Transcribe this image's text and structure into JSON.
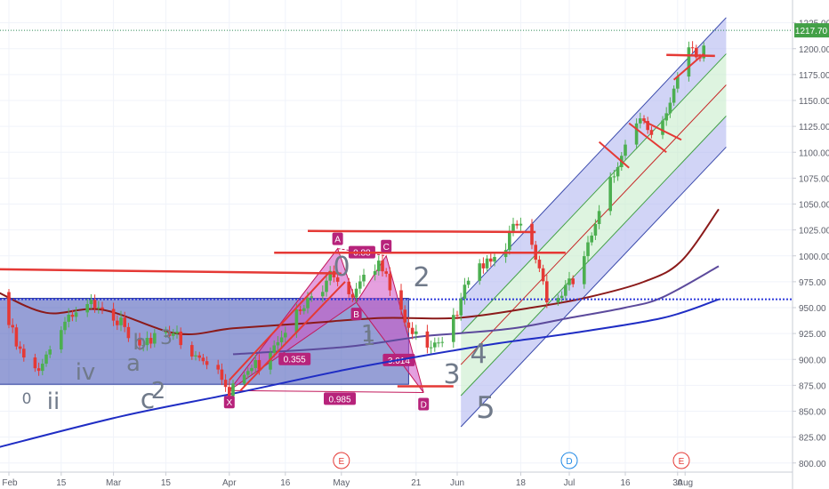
{
  "chart_data": {
    "type": "candlestick",
    "title": "",
    "xlabel": "",
    "ylabel": "",
    "y_axis_position": "right",
    "ylim": [
      795,
      1230
    ],
    "x_range_days": [
      -3,
      192
    ],
    "last_price": 1217.7,
    "last_price_label": "1217.70",
    "up_color": "#4caf50",
    "down_color": "#e53935",
    "x_ticks": [
      {
        "label": "Feb",
        "day": 0
      },
      {
        "label": "15",
        "day": 14
      },
      {
        "label": "Mar",
        "day": 28
      },
      {
        "label": "15",
        "day": 42
      },
      {
        "label": "Apr",
        "day": 59
      },
      {
        "label": "16",
        "day": 74
      },
      {
        "label": "May",
        "day": 89
      },
      {
        "label": "21",
        "day": 109
      },
      {
        "label": "Jun",
        "day": 120
      },
      {
        "label": "18",
        "day": 137
      },
      {
        "label": "Jul",
        "day": 150
      },
      {
        "label": "16",
        "day": 165
      },
      {
        "label": "30",
        "day": 179
      },
      {
        "label": "Aug",
        "day": 181
      }
    ],
    "y_ticks": [
      "800.00",
      "825.00",
      "850.00",
      "875.00",
      "900.00",
      "925.00",
      "950.00",
      "975.00",
      "1000.00",
      "1025.00",
      "1050.00",
      "1075.00",
      "1100.00",
      "1125.00",
      "1150.00",
      "1175.00",
      "1200.00",
      "1225.00"
    ],
    "price_path_anchors": [
      {
        "day": -3,
        "close": 965
      },
      {
        "day": 2,
        "close": 912
      },
      {
        "day": 6,
        "close": 885
      },
      {
        "day": 10,
        "close": 905
      },
      {
        "day": 14,
        "close": 930
      },
      {
        "day": 19,
        "close": 942
      },
      {
        "day": 24,
        "close": 958
      },
      {
        "day": 28,
        "close": 945
      },
      {
        "day": 32,
        "close": 918
      },
      {
        "day": 36,
        "close": 905
      },
      {
        "day": 40,
        "close": 935
      },
      {
        "day": 44,
        "close": 928
      },
      {
        "day": 47,
        "close": 903
      },
      {
        "day": 52,
        "close": 900
      },
      {
        "day": 56,
        "close": 895
      },
      {
        "day": 59,
        "close": 872
      },
      {
        "day": 63,
        "close": 885
      },
      {
        "day": 68,
        "close": 900
      },
      {
        "day": 73,
        "close": 930
      },
      {
        "day": 78,
        "close": 945
      },
      {
        "day": 83,
        "close": 965
      },
      {
        "day": 86,
        "close": 990
      },
      {
        "day": 89,
        "close": 975
      },
      {
        "day": 92,
        "close": 955
      },
      {
        "day": 95,
        "close": 975
      },
      {
        "day": 99,
        "close": 1000
      },
      {
        "day": 102,
        "close": 975
      },
      {
        "day": 105,
        "close": 940
      },
      {
        "day": 108,
        "close": 918
      },
      {
        "day": 112,
        "close": 920
      },
      {
        "day": 117,
        "close": 922
      },
      {
        "day": 120,
        "close": 940
      },
      {
        "day": 123,
        "close": 975
      },
      {
        "day": 127,
        "close": 995
      },
      {
        "day": 132,
        "close": 1010
      },
      {
        "day": 136,
        "close": 1028
      },
      {
        "day": 139,
        "close": 1015
      },
      {
        "day": 142,
        "close": 990
      },
      {
        "day": 145,
        "close": 950
      },
      {
        "day": 148,
        "close": 965
      },
      {
        "day": 152,
        "close": 975
      },
      {
        "day": 155,
        "close": 1005
      },
      {
        "day": 158,
        "close": 1050
      },
      {
        "day": 161,
        "close": 1080
      },
      {
        "day": 164,
        "close": 1095
      },
      {
        "day": 167,
        "close": 1120
      },
      {
        "day": 170,
        "close": 1130
      },
      {
        "day": 173,
        "close": 1112
      },
      {
        "day": 176,
        "close": 1145
      },
      {
        "day": 179,
        "close": 1170
      },
      {
        "day": 182,
        "close": 1195
      },
      {
        "day": 185,
        "close": 1190
      },
      {
        "day": 187,
        "close": 1217.7
      }
    ],
    "moving_averages": [
      {
        "color": "#8b1a1a",
        "points": [
          [
            -3,
            965
          ],
          [
            10,
            945
          ],
          [
            25,
            948
          ],
          [
            45,
            925
          ],
          [
            60,
            930
          ],
          [
            80,
            935
          ],
          [
            100,
            940
          ],
          [
            120,
            940
          ],
          [
            140,
            950
          ],
          [
            155,
            960
          ],
          [
            170,
            975
          ],
          [
            180,
            995
          ],
          [
            190,
            1045
          ]
        ]
      },
      {
        "color": "#5c4a9c",
        "points": [
          [
            60,
            905
          ],
          [
            90,
            912
          ],
          [
            110,
            922
          ],
          [
            120,
            925
          ],
          [
            135,
            930
          ],
          [
            150,
            940
          ],
          [
            165,
            950
          ],
          [
            175,
            960
          ],
          [
            190,
            990
          ]
        ]
      },
      {
        "color": "#1f2dc4",
        "points": [
          [
            -3,
            815
          ],
          [
            30,
            845
          ],
          [
            60,
            867
          ],
          [
            90,
            890
          ],
          [
            110,
            903
          ],
          [
            130,
            915
          ],
          [
            150,
            925
          ],
          [
            175,
            940
          ],
          [
            190,
            958
          ]
        ]
      }
    ],
    "horizontal_levels": [
      {
        "color": "#2e3adb",
        "style": "dotted",
        "value": 958
      },
      {
        "color": "#2e8b57",
        "style": "dotted",
        "value": 1217.7
      }
    ],
    "red_segments": [
      {
        "from": [
          -3,
          987
        ],
        "to": [
          89,
          983
        ]
      },
      {
        "from": [
          71,
          1003
        ],
        "to": [
          149,
          1003
        ]
      },
      {
        "from": [
          80,
          1024
        ],
        "to": [
          141,
          1023
        ]
      },
      {
        "from": [
          104,
          874
        ],
        "to": [
          119,
          874
        ]
      },
      {
        "from": [
          176,
          1194
        ],
        "to": [
          189,
          1193
        ]
      }
    ],
    "blue_box": {
      "day_from": -3,
      "day_to": 107,
      "price_low": 876,
      "price_high": 959
    },
    "harmonic_pattern": {
      "points": [
        {
          "label": "X",
          "day": 59,
          "price": 870
        },
        {
          "label": "A",
          "day": 88,
          "price": 1007
        },
        {
          "label": "B",
          "day": 93,
          "price": 955
        },
        {
          "label": "C",
          "day": 101,
          "price": 1000
        },
        {
          "label": "D",
          "day": 111,
          "price": 868
        }
      ],
      "ratios": [
        "0.355",
        "0.88",
        "3.014",
        "0.985"
      ]
    },
    "channel_regression": {
      "day_from": 121,
      "day_to": 192,
      "lines_at_start": [
        958,
        925,
        895,
        865,
        835
      ],
      "lines_at_end": [
        1230,
        1195,
        1165,
        1135,
        1105
      ]
    },
    "wave_labels": [
      {
        "text": "0",
        "size": 17
      },
      {
        "text": "ii",
        "size": 26
      },
      {
        "text": "iv",
        "size": 26
      },
      {
        "text": "c",
        "size": 30
      },
      {
        "text": "2",
        "size": 26
      },
      {
        "text": "a",
        "size": 26
      },
      {
        "text": "b",
        "size": 24
      },
      {
        "text": "1",
        "size": 22
      },
      {
        "text": "3",
        "size": 22
      },
      {
        "text": "0",
        "size": 30
      },
      {
        "text": "1",
        "size": 26
      },
      {
        "text": "2",
        "size": 30
      },
      {
        "text": "3",
        "size": 30
      },
      {
        "text": "4",
        "size": 30
      },
      {
        "text": "5",
        "size": 34
      }
    ],
    "event_markers": [
      "E",
      "D",
      "E"
    ]
  }
}
